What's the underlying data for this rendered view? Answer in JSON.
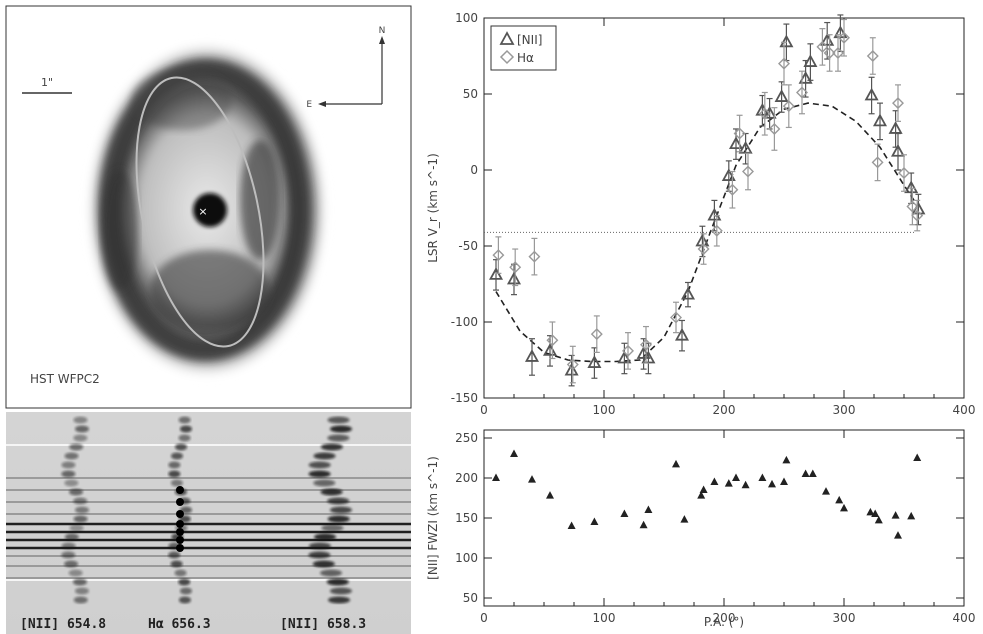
{
  "image_panel": {
    "label": "HST WFPC2",
    "scale_bar_label": "1\"",
    "north_label": "N",
    "east_label": "E",
    "center_marker": "×"
  },
  "spectrum_panel": {
    "labels": [
      "[NII] 654.8",
      "Hα 656.3",
      "[NII] 658.3"
    ]
  },
  "chart_data": [
    {
      "type": "scatter",
      "title": "",
      "ylabel": "LSR V_r (km s^-1)",
      "xlabel": "",
      "xlim": [
        0,
        400
      ],
      "ylim": [
        -150,
        100
      ],
      "xticks": [
        0,
        100,
        200,
        300,
        400
      ],
      "yticks": [
        -150,
        -100,
        -50,
        0,
        50,
        100
      ],
      "legend": {
        "position": "top-left",
        "entries": [
          "[NII]",
          "Hα"
        ]
      },
      "systemic_velocity": -41,
      "series": [
        {
          "name": "[NII]",
          "marker": "triangle",
          "x": [
            10,
            25,
            40,
            55,
            73,
            92,
            117,
            133,
            137,
            165,
            170,
            182,
            192,
            204,
            210,
            218,
            232,
            238,
            248,
            252,
            268,
            272,
            286,
            297,
            323,
            330,
            343,
            345,
            356,
            362
          ],
          "y": [
            -69,
            -72,
            -123,
            -119,
            -132,
            -127,
            -124,
            -121,
            -124,
            -109,
            -82,
            -47,
            -30,
            -4,
            17,
            14,
            39,
            37,
            48,
            84,
            60,
            71,
            85,
            90,
            49,
            32,
            27,
            12,
            -12,
            -26
          ],
          "yerr": [
            10,
            10,
            12,
            10,
            10,
            10,
            10,
            10,
            10,
            10,
            8,
            10,
            10,
            10,
            10,
            10,
            10,
            10,
            10,
            12,
            12,
            12,
            12,
            12,
            12,
            12,
            12,
            12,
            10,
            10
          ]
        },
        {
          "name": "Hα",
          "marker": "diamond",
          "x": [
            12,
            26,
            42,
            57,
            74,
            94,
            120,
            135,
            160,
            183,
            194,
            207,
            213,
            220,
            234,
            242,
            250,
            254,
            265,
            282,
            288,
            295,
            300,
            324,
            328,
            345,
            350,
            357,
            361
          ],
          "y": [
            -56,
            -64,
            -57,
            -112,
            -128,
            -108,
            -119,
            -115,
            -97,
            -52,
            -40,
            -13,
            24,
            -1,
            37,
            27,
            70,
            42,
            51,
            81,
            77,
            77,
            87,
            75,
            5,
            44,
            -2,
            -24,
            -30
          ],
          "yerr": [
            12,
            12,
            12,
            12,
            12,
            12,
            12,
            12,
            10,
            10,
            10,
            12,
            12,
            12,
            14,
            14,
            14,
            14,
            14,
            12,
            12,
            12,
            12,
            12,
            12,
            12,
            12,
            12,
            10
          ]
        }
      ],
      "model_curve": {
        "style": "dashed",
        "x": [
          10,
          30,
          50,
          70,
          90,
          110,
          130,
          150,
          170,
          190,
          210,
          230,
          250,
          270,
          290,
          310,
          330,
          350,
          360
        ],
        "y": [
          -80,
          -106,
          -120,
          -125,
          -126,
          -126,
          -125,
          -110,
          -80,
          -38,
          3,
          28,
          40,
          44,
          42,
          32,
          15,
          -10,
          -22
        ]
      }
    },
    {
      "type": "scatter",
      "title": "",
      "ylabel": "[NII] FWZI (km s^-1)",
      "xlabel": "P.A. (°)",
      "xlim": [
        0,
        400
      ],
      "ylim": [
        40,
        260
      ],
      "xticks": [
        0,
        100,
        200,
        300,
        400
      ],
      "yticks": [
        50,
        100,
        150,
        200,
        250
      ],
      "series": [
        {
          "name": "[NII]",
          "marker": "filled-triangle",
          "x": [
            10,
            25,
            40,
            55,
            73,
            92,
            117,
            133,
            137,
            160,
            167,
            181,
            183,
            192,
            204,
            210,
            218,
            232,
            240,
            250,
            252,
            268,
            274,
            285,
            296,
            300,
            322,
            326,
            329,
            343,
            345,
            356,
            361
          ],
          "y": [
            200,
            230,
            198,
            178,
            140,
            145,
            155,
            141,
            160,
            217,
            148,
            178,
            185,
            195,
            193,
            200,
            191,
            200,
            192,
            195,
            222,
            205,
            205,
            183,
            172,
            162,
            157,
            155,
            147,
            153,
            128,
            152,
            225
          ]
        }
      ]
    }
  ],
  "colors": {
    "nii": "#555555",
    "halpha": "#999999",
    "axis": "#222222",
    "fwzi_marker": "#222222"
  }
}
